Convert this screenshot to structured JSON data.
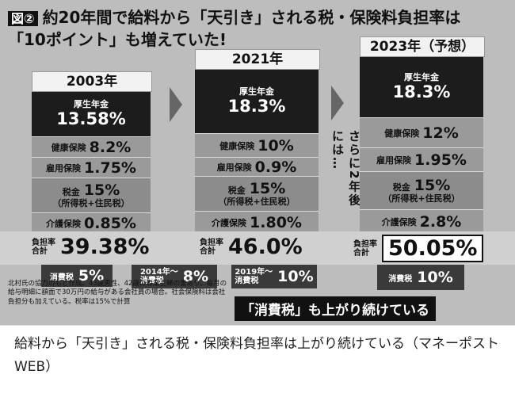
{
  "header": {
    "fig_tag": "図②",
    "line1": "約20年間で給料から「天引き」される税・保険料負担率は",
    "line2": "「10ポイント」も増えていた!"
  },
  "chart_data": {
    "type": "bar",
    "title": "約20年間で給料から「天引き」される税・保険料負担率は「10ポイント」も増えていた!",
    "categories": [
      "2003年",
      "2021年",
      "2023年（予想）"
    ],
    "series": [
      {
        "name": "厚生年金",
        "values": [
          13.58,
          18.3,
          18.3
        ]
      },
      {
        "name": "健康保険",
        "values": [
          8.2,
          10,
          12
        ]
      },
      {
        "name": "雇用保険",
        "values": [
          1.75,
          0.9,
          1.95
        ]
      },
      {
        "name": "税金（所得税+住民税）",
        "values": [
          15,
          15,
          15
        ]
      },
      {
        "name": "介護保険",
        "values": [
          0.85,
          1.8,
          2.8
        ]
      }
    ],
    "totals": [
      39.38,
      46.0,
      50.05
    ],
    "consumption_tax": [
      5,
      8,
      10
    ]
  },
  "labels": {
    "cols": [
      "2003年",
      "2021年",
      "2023年（予想）"
    ],
    "pension": "厚生年金",
    "health": "健康保険",
    "employment": "雇用保険",
    "tax": "税金",
    "tax_sub": "（所得税+住民税）",
    "care": "介護保険",
    "total_cap1": "負担率",
    "total_cap2": "合計",
    "ctax": "消費税",
    "ctax_2014": "2014年〜",
    "ctax_2019": "2019年〜",
    "further": "さらに2年後には…"
  },
  "values": {
    "c1": {
      "pension": "13.58%",
      "health": "8.2%",
      "employment": "1.75%",
      "tax": "15%",
      "care": "0.85%",
      "total": "39.38%",
      "ctax": "5%"
    },
    "c2": {
      "pension": "18.3%",
      "health": "10%",
      "employment": "0.9%",
      "tax": "15%",
      "care": "1.80%",
      "total": "46.0%",
      "ctax": "8%"
    },
    "c3": {
      "pension": "18.3%",
      "health": "12%",
      "employment": "1.95%",
      "tax": "15%",
      "care": "2.8%",
      "total": "50.05%",
      "ctax": "10%"
    },
    "ctax_2019_val": "10%"
  },
  "note": "北村氏の協力のもと作成。43歳男性、42歳の専業主婦の妻あり、毎月の給与明細に額面で30万円の給与がある会社員の場合。社会保険料は会社負担分も加えている。税率は15%で計算",
  "slogan": "「消費税」も上がり続けている",
  "caption": "給料から「天引き」される税・保険料負担率は上がり続けている（マネーポストWEB）"
}
